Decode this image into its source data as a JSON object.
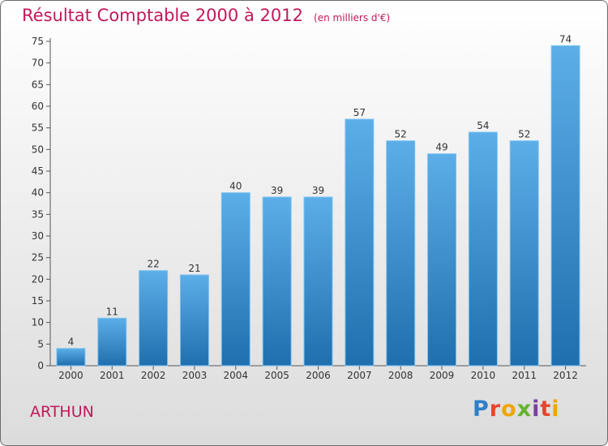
{
  "header": {
    "title": "Résultat Comptable 2000 à 2012",
    "subtitle": "(en milliers d'€)"
  },
  "footer": {
    "commune": "ARTHUN",
    "logo_text": "Proxiti"
  },
  "colors": {
    "bar_top": "#5caee8",
    "bar_bottom": "#1f6fae",
    "title": "#c2185b"
  },
  "chart_data": {
    "type": "bar",
    "title": "Résultat Comptable 2000 à 2012",
    "subtitle": "(en milliers d'€)",
    "categories": [
      "2000",
      "2001",
      "2002",
      "2003",
      "2004",
      "2005",
      "2006",
      "2007",
      "2008",
      "2009",
      "2010",
      "2011",
      "2012"
    ],
    "values": [
      4,
      11,
      22,
      21,
      40,
      39,
      39,
      57,
      52,
      49,
      54,
      52,
      74
    ],
    "ylim": [
      0,
      75
    ],
    "yticks": [
      0,
      5,
      10,
      15,
      20,
      25,
      30,
      35,
      40,
      45,
      50,
      55,
      60,
      65,
      70,
      75
    ],
    "grid": false,
    "legend": "none"
  }
}
